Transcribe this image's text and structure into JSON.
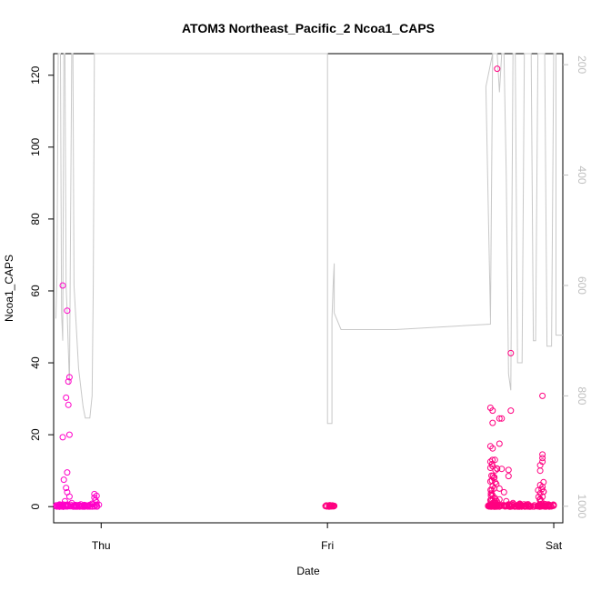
{
  "chart_data": {
    "type": "scatter",
    "title": "ATOM3 Northeast_Pacific_2 Ncoa1_CAPS",
    "xlabel": "Date",
    "ylabel": "Ncoa1_CAPS",
    "x_ticks": [
      "Thu",
      "Fri",
      "Sat"
    ],
    "x_tick_days": [
      1,
      2,
      3
    ],
    "xlim_days": [
      0.79,
      3.04
    ],
    "ylim": [
      -4.5,
      126
    ],
    "y_ticks": [
      0,
      20,
      40,
      60,
      80,
      100,
      120
    ],
    "right_axis": {
      "ylim": [
        1030,
        180
      ],
      "reversed": true,
      "ticks": [
        200,
        400,
        600,
        800,
        1000
      ],
      "color": "#bfbfbf"
    },
    "grid": false,
    "series": [
      {
        "marker": "open-circle",
        "color": "#ff00c8",
        "points": [
          [
            0.83,
            61.5
          ],
          [
            0.85,
            54.5
          ],
          [
            0.86,
            36.0
          ],
          [
            0.855,
            34.8
          ],
          [
            0.845,
            30.3
          ],
          [
            0.855,
            28.3
          ],
          [
            0.83,
            19.3
          ],
          [
            0.86,
            20.0
          ],
          [
            0.85,
            9.5
          ],
          [
            0.835,
            7.5
          ],
          [
            0.845,
            5.2
          ],
          [
            0.85,
            4.0
          ],
          [
            0.86,
            2.8
          ],
          [
            0.84,
            1.5
          ],
          [
            0.87,
            1.0
          ],
          [
            0.82,
            0.5
          ],
          [
            0.9,
            0.4
          ],
          [
            0.95,
            0.5
          ],
          [
            0.97,
            3.5
          ],
          [
            0.97,
            2.5
          ],
          [
            0.975,
            1.8
          ],
          [
            0.98,
            3.0
          ],
          [
            0.98,
            1.2
          ],
          [
            0.96,
            0.8
          ],
          [
            0.93,
            0.2
          ],
          [
            0.88,
            0.3
          ],
          [
            0.91,
            0.6
          ],
          [
            0.99,
            0.5
          ]
        ],
        "dense_bands": [
          [
            0.8,
            0.99,
            0,
            0.6
          ]
        ]
      },
      {
        "marker": "open-circle",
        "color": "#ff0080",
        "points": [
          [
            2.01,
            0.3
          ],
          [
            2.02,
            0.1
          ],
          [
            2.03,
            0.2
          ],
          [
            2.75,
            121.8
          ],
          [
            2.81,
            42.7
          ],
          [
            2.95,
            30.8
          ],
          [
            2.72,
            27.5
          ],
          [
            2.81,
            26.7
          ],
          [
            2.73,
            26.7
          ],
          [
            2.76,
            24.5
          ],
          [
            2.77,
            24.5
          ],
          [
            2.73,
            23.3
          ],
          [
            2.76,
            17.5
          ],
          [
            2.72,
            16.8
          ],
          [
            2.73,
            16.2
          ],
          [
            2.95,
            14.5
          ],
          [
            2.95,
            13.5
          ],
          [
            2.74,
            13.0
          ],
          [
            2.95,
            12.5
          ],
          [
            2.94,
            11.5
          ],
          [
            2.72,
            10.8
          ],
          [
            2.75,
            10.5
          ],
          [
            2.77,
            10.5
          ],
          [
            2.8,
            10.2
          ],
          [
            2.94,
            10.0
          ],
          [
            2.8,
            8.5
          ],
          [
            2.72,
            7.0
          ],
          [
            2.94,
            6.0
          ],
          [
            2.95,
            5.5
          ],
          [
            2.76,
            5.0
          ],
          [
            2.78,
            4.0
          ],
          [
            2.73,
            3.0
          ],
          [
            2.76,
            2.0
          ],
          [
            2.72,
            1.8
          ],
          [
            2.79,
            1.5
          ],
          [
            2.82,
            1.0
          ],
          [
            2.85,
            0.8
          ],
          [
            2.98,
            0.5
          ],
          [
            3.0,
            0.3
          ]
        ],
        "dense_bands": [
          [
            1.99,
            2.03,
            0,
            0.4
          ],
          [
            2.71,
            3.01,
            0,
            0.7
          ],
          [
            2.72,
            2.75,
            0,
            13
          ],
          [
            2.93,
            2.96,
            0,
            7
          ]
        ]
      }
    ],
    "depth_line": {
      "color": "#c8c8c8",
      "points": [
        [
          0.8,
          660
        ],
        [
          0.805,
          580
        ],
        [
          0.81,
          10
        ],
        [
          0.82,
          10
        ],
        [
          0.825,
          650
        ],
        [
          0.83,
          700
        ],
        [
          0.835,
          10
        ],
        [
          0.84,
          10
        ],
        [
          0.845,
          600
        ],
        [
          0.85,
          650
        ],
        [
          0.86,
          780
        ],
        [
          0.87,
          10
        ],
        [
          0.875,
          10
        ],
        [
          0.88,
          600
        ],
        [
          0.9,
          750
        ],
        [
          0.92,
          820
        ],
        [
          0.93,
          840
        ],
        [
          0.95,
          840
        ],
        [
          0.96,
          800
        ],
        [
          0.965,
          600
        ],
        [
          0.97,
          10
        ],
        [
          1.0,
          10
        ],
        [
          2.0,
          10
        ],
        [
          1.995,
          10
        ],
        [
          2.0,
          10
        ],
        [
          2.0,
          680
        ],
        [
          2.0,
          850
        ],
        [
          2.02,
          850
        ],
        [
          2.02,
          660
        ],
        [
          2.025,
          600
        ],
        [
          2.03,
          560
        ],
        [
          2.03,
          650
        ],
        [
          2.06,
          680
        ],
        [
          2.3,
          680
        ],
        [
          2.72,
          670
        ],
        [
          2.73,
          10
        ],
        [
          2.7,
          240
        ],
        [
          2.72,
          660
        ],
        [
          2.73,
          10
        ],
        [
          2.75,
          10
        ],
        [
          2.76,
          250
        ],
        [
          2.77,
          10
        ],
        [
          2.78,
          10
        ],
        [
          2.79,
          400
        ],
        [
          2.8,
          760
        ],
        [
          2.81,
          790
        ],
        [
          2.82,
          10
        ],
        [
          2.83,
          10
        ],
        [
          2.84,
          740
        ],
        [
          2.86,
          740
        ],
        [
          2.87,
          10
        ],
        [
          2.9,
          10
        ],
        [
          2.91,
          700
        ],
        [
          2.92,
          700
        ],
        [
          2.93,
          10
        ],
        [
          2.96,
          10
        ],
        [
          2.97,
          710
        ],
        [
          2.99,
          710
        ],
        [
          3.0,
          10
        ],
        [
          3.01,
          10
        ],
        [
          3.01,
          690
        ],
        [
          3.04,
          690
        ]
      ]
    }
  }
}
